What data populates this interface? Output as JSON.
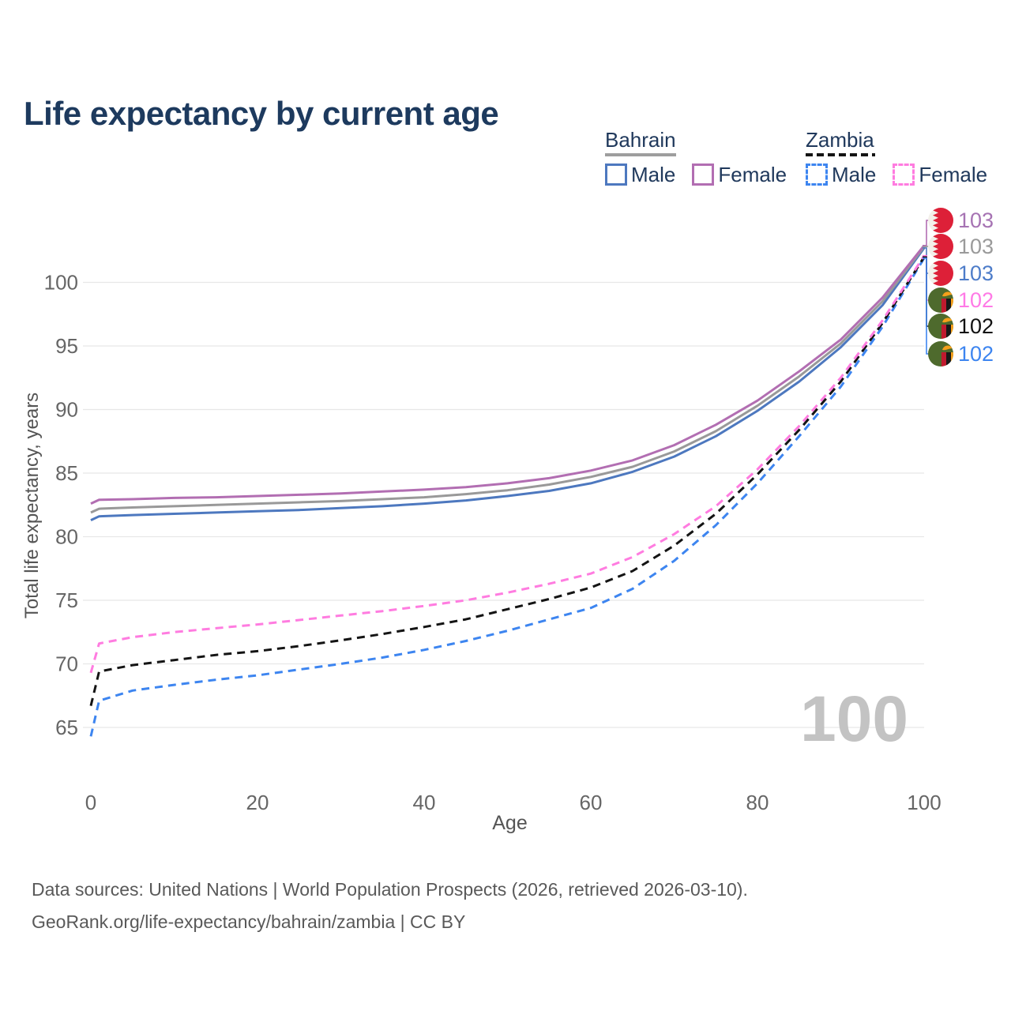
{
  "title": "Life expectancy by current age",
  "legend": {
    "groups": [
      {
        "country": "Bahrain",
        "line_style": "solid",
        "underline_color": "#9e9e9e",
        "items": [
          {
            "label": "Male",
            "color": "#4d78bf"
          },
          {
            "label": "Female",
            "color": "#b26eb2"
          }
        ]
      },
      {
        "country": "Zambia",
        "line_style": "dashed",
        "underline_color": "#141414",
        "items": [
          {
            "label": "Male",
            "color": "#3d85f0"
          },
          {
            "label": "Female",
            "color": "#ff7ce0"
          }
        ]
      }
    ]
  },
  "watermark_age": "100",
  "footer": {
    "line1": "Data sources: United Nations | World Population Prospects (2026, retrieved 2026-03-10).",
    "line2": "GeoRank.org/life-expectancy/bahrain/zambia | CC BY"
  },
  "colors": {
    "title_text": "#1d3a5e",
    "legend_text": "#20395c",
    "axis_tick_text": "#666666",
    "axis_title_text": "#555555",
    "gridline": "#e7e7e7",
    "watermark": "#c3c3c3",
    "bahrain_flag_red": "#dd2038",
    "bahrain_flag_white": "#f3f0ea",
    "zambia_flag_green": "#4e6a2d",
    "zambia_flag_orange": "#f5a01b",
    "zambia_flag_stripe_red": "#c01a2e",
    "zambia_flag_stripe_black": "#191919"
  },
  "chart_data": {
    "type": "line",
    "title": "Life expectancy by current age",
    "xlabel": "Age",
    "ylabel": "Total life expectancy, years",
    "x_ticks": [
      0,
      20,
      40,
      60,
      80,
      100
    ],
    "y_ticks": [
      65,
      70,
      75,
      80,
      85,
      90,
      95,
      100
    ],
    "xlim": [
      0,
      100
    ],
    "ylim": [
      64,
      103.5
    ],
    "grid": "horizontal-only",
    "legend_position": "top-right",
    "x": [
      0,
      1,
      5,
      10,
      15,
      20,
      25,
      30,
      35,
      40,
      45,
      50,
      55,
      60,
      65,
      70,
      75,
      80,
      85,
      90,
      95,
      100
    ],
    "series": [
      {
        "name": "Bahrain Female",
        "country": "Bahrain",
        "sex": "Female",
        "color": "#b26eb2",
        "dashed": false,
        "end_label": "103",
        "end_label_color": "#a673b3",
        "flag": "bahrain",
        "values": [
          82.6,
          82.9,
          82.95,
          83.05,
          83.1,
          83.2,
          83.3,
          83.4,
          83.55,
          83.7,
          83.9,
          84.2,
          84.6,
          85.2,
          86.0,
          87.2,
          88.8,
          90.7,
          93.0,
          95.5,
          98.8,
          102.9
        ]
      },
      {
        "name": "Bahrain Both sexes",
        "country": "Bahrain",
        "sex": "Both",
        "color": "#999999",
        "dashed": false,
        "end_label": "103",
        "end_label_color": "#9a9a9a",
        "flag": "bahrain",
        "values": [
          81.9,
          82.2,
          82.3,
          82.4,
          82.5,
          82.6,
          82.7,
          82.8,
          82.95,
          83.1,
          83.35,
          83.65,
          84.1,
          84.7,
          85.5,
          86.7,
          88.3,
          90.3,
          92.6,
          95.2,
          98.5,
          102.8
        ]
      },
      {
        "name": "Bahrain Male",
        "country": "Bahrain",
        "sex": "Male",
        "color": "#4d78bf",
        "dashed": false,
        "end_label": "103",
        "end_label_color": "#4d7cc9",
        "flag": "bahrain",
        "values": [
          81.3,
          81.6,
          81.7,
          81.8,
          81.9,
          82.0,
          82.1,
          82.25,
          82.4,
          82.6,
          82.85,
          83.2,
          83.6,
          84.2,
          85.1,
          86.3,
          87.9,
          89.9,
          92.2,
          94.9,
          98.2,
          102.7
        ]
      },
      {
        "name": "Zambia Female",
        "country": "Zambia",
        "sex": "Female",
        "color": "#ff7ce0",
        "dashed": true,
        "end_label": "102",
        "end_label_color": "#ff7ae6",
        "flag": "zambia",
        "values": [
          69.3,
          71.6,
          72.1,
          72.5,
          72.8,
          73.1,
          73.45,
          73.8,
          74.15,
          74.55,
          75.0,
          75.6,
          76.3,
          77.1,
          78.4,
          80.2,
          82.4,
          85.3,
          88.7,
          92.5,
          97.0,
          102.1
        ]
      },
      {
        "name": "Zambia Both sexes",
        "country": "Zambia",
        "sex": "Both",
        "color": "#141414",
        "dashed": true,
        "end_label": "102",
        "end_label_color": "#111111",
        "flag": "zambia",
        "values": [
          66.7,
          69.4,
          69.9,
          70.3,
          70.7,
          71.0,
          71.4,
          71.85,
          72.35,
          72.9,
          73.5,
          74.3,
          75.1,
          76.0,
          77.3,
          79.3,
          81.8,
          84.9,
          88.4,
          92.2,
          96.8,
          102.0
        ]
      },
      {
        "name": "Zambia Male",
        "country": "Zambia",
        "sex": "Male",
        "color": "#3d85f0",
        "dashed": true,
        "end_label": "102",
        "end_label_color": "#3d85f0",
        "flag": "zambia",
        "values": [
          64.3,
          67.1,
          67.9,
          68.35,
          68.75,
          69.1,
          69.55,
          70.0,
          70.5,
          71.1,
          71.8,
          72.6,
          73.5,
          74.4,
          75.9,
          78.1,
          80.9,
          84.2,
          87.9,
          91.8,
          96.5,
          101.9
        ]
      }
    ]
  }
}
